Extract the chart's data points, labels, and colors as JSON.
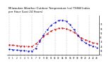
{
  "title": "Milwaukee Weather Outdoor Temperature (vs) THSW Index per Hour (Last 24 Hours)",
  "title_line1": "Milwaukee Weather Outdoor Temperature (vs) THSW Index",
  "title_line2": "per Hour (Last 24 Hours)",
  "title_fontsize": 2.8,
  "background_color": "#ffffff",
  "plot_background": "#ffffff",
  "grid_color": "#999999",
  "hours": [
    0,
    1,
    2,
    3,
    4,
    5,
    6,
    7,
    8,
    9,
    10,
    11,
    12,
    13,
    14,
    15,
    16,
    17,
    18,
    19,
    20,
    21,
    22,
    23
  ],
  "temp": [
    28,
    27,
    26,
    25,
    25,
    24,
    24,
    30,
    38,
    46,
    53,
    59,
    63,
    65,
    66,
    64,
    61,
    56,
    49,
    43,
    39,
    36,
    33,
    31
  ],
  "thsw": [
    18,
    17,
    16,
    15,
    15,
    14,
    14,
    20,
    35,
    50,
    62,
    72,
    78,
    83,
    84,
    81,
    73,
    62,
    50,
    39,
    32,
    28,
    25,
    22
  ],
  "temp_color": "#cc0000",
  "thsw_color": "#0000cc",
  "ylim": [
    5,
    95
  ],
  "yticks": [
    5,
    15,
    25,
    35,
    45,
    55,
    65,
    75
  ],
  "ytick_labels": [
    "5",
    "15",
    "25",
    "35",
    "45",
    "55",
    "65",
    "75"
  ],
  "xtick_labels": [
    "0",
    "1",
    "2",
    "3",
    "4",
    "5",
    "6",
    "7",
    "8",
    "9",
    "10",
    "11",
    "12",
    "13",
    "14",
    "15",
    "16",
    "17",
    "18",
    "19",
    "20",
    "21",
    "22",
    "23"
  ],
  "vgrid_positions": [
    0,
    3,
    6,
    9,
    12,
    15,
    18,
    21
  ]
}
